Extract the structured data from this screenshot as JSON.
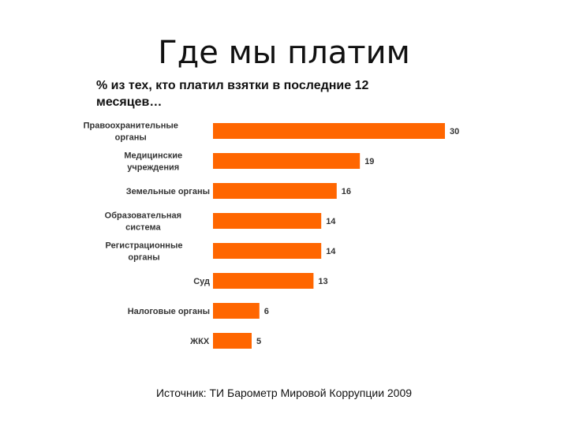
{
  "page": {
    "title": "Где мы платим",
    "source": "Источник: ТИ Барометр Мировой Коррупции 2009"
  },
  "colors": {
    "bar": "#FF6600",
    "text": "#111111",
    "label": "#333333"
  },
  "chart_data": {
    "type": "bar",
    "orientation": "horizontal",
    "title": "% из тех, кто платил взятки в последние 12 месяцев…",
    "categories": [
      [
        "Правоохранительные",
        "органы"
      ],
      [
        "Медицинские",
        "учреждения"
      ],
      [
        "Земельные органы"
      ],
      [
        "Образовательная",
        "система"
      ],
      [
        "Регистрационные",
        "органы"
      ],
      [
        "Суд"
      ],
      [
        "Налоговые органы"
      ],
      [
        "ЖКХ"
      ]
    ],
    "values": [
      30,
      19,
      16,
      14,
      14,
      13,
      6,
      5
    ],
    "xlim": [
      0,
      30
    ],
    "grid": false,
    "legend": "none"
  }
}
